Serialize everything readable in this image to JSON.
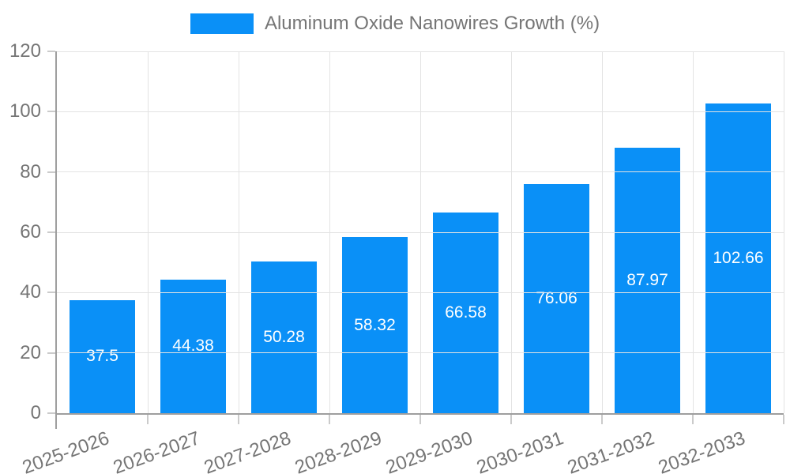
{
  "chart_data": {
    "type": "bar",
    "title": "Aluminum Oxide Nanowires Growth (%)",
    "xlabel": "",
    "ylabel": "",
    "legend": {
      "position": "top",
      "label": "Aluminum Oxide Nanowires Growth (%)"
    },
    "categories": [
      "2025-2026",
      "2026-2027",
      "2027-2028",
      "2028-2029",
      "2029-2030",
      "2030-2031",
      "2031-2032",
      "2032-2033"
    ],
    "series": [
      {
        "name": "Aluminum Oxide Nanowires Growth (%)",
        "values": [
          37.5,
          44.38,
          50.28,
          58.32,
          66.58,
          76.06,
          87.97,
          102.66
        ],
        "value_labels": [
          "37.5",
          "44.38",
          "50.28",
          "58.32",
          "66.58",
          "76.06",
          "87.97",
          "102.66"
        ]
      }
    ],
    "ylim": [
      0,
      120
    ],
    "yticks": [
      0,
      20,
      40,
      60,
      80,
      100,
      120
    ],
    "ytick_labels": [
      "0",
      "20",
      "40",
      "60",
      "80",
      "100",
      "120"
    ],
    "grid": true,
    "bar_value_labels_inside": true,
    "colors": {
      "bar": "#0a90f7",
      "axis_text": "#757575",
      "legend_text": "#757575",
      "value_label_text": "#ffffff",
      "gridline": "#e3e3e3",
      "axis_line": "#9e9e9e",
      "tick_mark": "#cbcbcb",
      "background": "#ffffff"
    }
  }
}
